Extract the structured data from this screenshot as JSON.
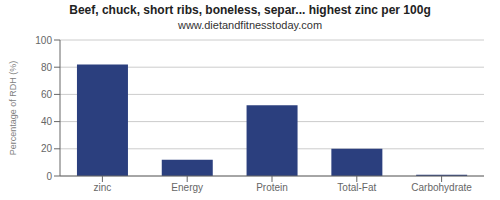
{
  "chart_data": {
    "type": "bar",
    "title": "Beef, chuck, short ribs, boneless, separ... highest zinc per 100g",
    "subtitle": "www.dietandfitnesstoday.com",
    "categories": [
      "zinc",
      "Energy",
      "Protein",
      "Total-Fat",
      "Carbohydrate"
    ],
    "values": [
      82,
      12,
      52,
      20,
      1
    ],
    "color": "#2b3f7e",
    "ylabel": "Percentage of RDH (%)",
    "ylim": [
      0,
      100
    ],
    "yticks": [
      0,
      20,
      40,
      60,
      80,
      100
    ],
    "grid": true
  }
}
